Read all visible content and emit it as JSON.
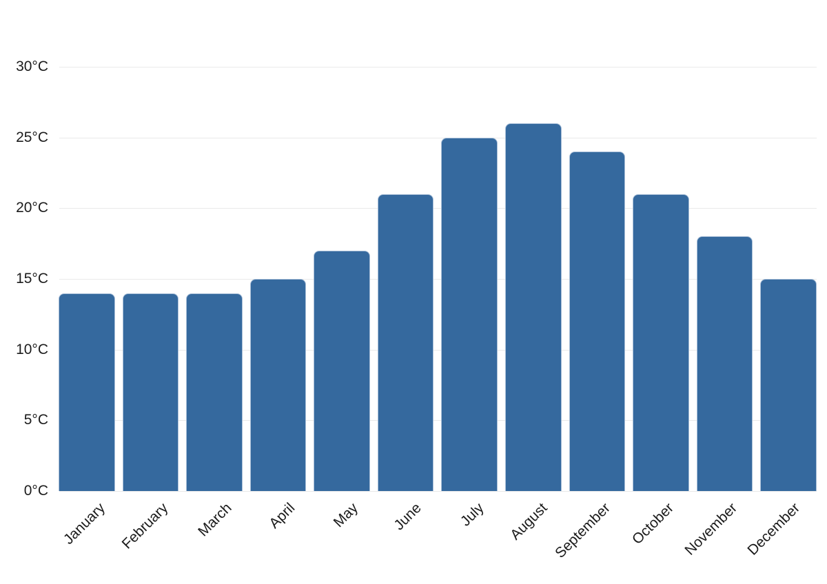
{
  "chart_data": {
    "type": "bar",
    "title": "",
    "xlabel": "",
    "ylabel": "",
    "categories": [
      "January",
      "February",
      "March",
      "April",
      "May",
      "June",
      "July",
      "August",
      "September",
      "October",
      "November",
      "December"
    ],
    "values": [
      14,
      14,
      14,
      15,
      17,
      21,
      25,
      26,
      24,
      21,
      18,
      15
    ],
    "unit": "°C",
    "ylim": [
      0,
      30
    ],
    "yticks": [
      0,
      5,
      10,
      15,
      20,
      25,
      30
    ],
    "ytick_labels": [
      "0°C",
      "5°C",
      "10°C",
      "15°C",
      "20°C",
      "25°C",
      "30°C"
    ],
    "grid": true,
    "legend": false,
    "colors": {
      "bar_fill": "#35699e",
      "bar_stroke": "#a9bfd8",
      "gridline": "#e9e9e9",
      "tick_text": "#1b1b1b",
      "background": "#ffffff"
    }
  }
}
